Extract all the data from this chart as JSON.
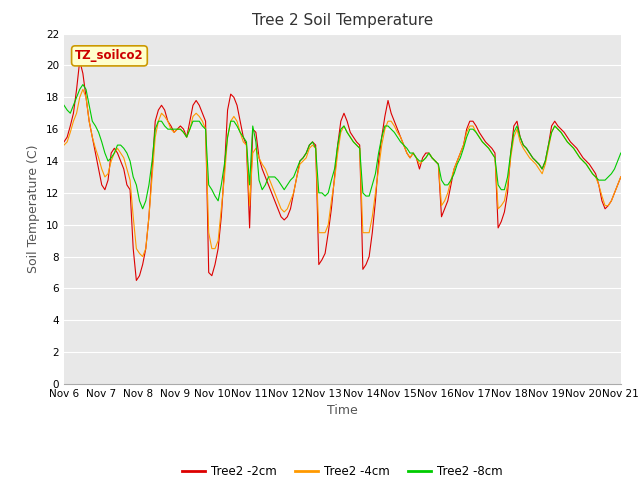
{
  "title": "Tree 2 Soil Temperature",
  "xlabel": "Time",
  "ylabel": "Soil Temperature (C)",
  "ylim": [
    0,
    22
  ],
  "yticks": [
    0,
    2,
    4,
    6,
    8,
    10,
    12,
    14,
    16,
    18,
    20,
    22
  ],
  "xtick_labels": [
    "Nov 6",
    "Nov 7",
    "Nov 8",
    "Nov 9",
    "Nov 10",
    "Nov 11",
    "Nov 12",
    "Nov 13",
    "Nov 14",
    "Nov 15",
    "Nov 16",
    "Nov 17",
    "Nov 18",
    "Nov 19",
    "Nov 20",
    "Nov 21"
  ],
  "annotation_text": "TZ_soilco2",
  "annotation_color": "#cc0000",
  "annotation_bg": "#ffffcc",
  "annotation_border": "#cc9900",
  "legend_labels": [
    "Tree2 -2cm",
    "Tree2 -4cm",
    "Tree2 -8cm"
  ],
  "line_colors": [
    "#dd0000",
    "#ff9900",
    "#00cc00"
  ],
  "fig_bg": "#ffffff",
  "plot_bg": "#e8e8e8",
  "title_fontsize": 11,
  "axis_label_fontsize": 9,
  "tick_fontsize": 7.5,
  "grid_color": "#ffffff",
  "series_2cm": [
    15.2,
    15.5,
    16.2,
    17.0,
    18.5,
    20.3,
    19.5,
    18.0,
    16.5,
    15.5,
    14.5,
    13.5,
    12.5,
    12.2,
    12.8,
    14.5,
    14.8,
    14.5,
    14.0,
    13.5,
    12.5,
    12.2,
    8.5,
    6.5,
    6.8,
    7.5,
    8.5,
    10.5,
    13.5,
    16.5,
    17.2,
    17.5,
    17.2,
    16.5,
    16.2,
    15.8,
    16.0,
    16.2,
    16.0,
    15.5,
    16.5,
    17.5,
    17.8,
    17.5,
    17.0,
    16.5,
    7.0,
    6.8,
    7.5,
    8.5,
    10.5,
    13.5,
    17.2,
    18.2,
    18.0,
    17.5,
    16.5,
    15.5,
    15.0,
    9.8,
    16.0,
    15.8,
    14.2,
    13.5,
    13.0,
    12.5,
    12.0,
    11.5,
    11.0,
    10.5,
    10.3,
    10.5,
    11.0,
    12.0,
    13.0,
    14.0,
    14.2,
    14.5,
    15.0,
    15.2,
    15.0,
    7.5,
    7.8,
    8.2,
    9.5,
    11.0,
    13.0,
    15.0,
    16.5,
    17.0,
    16.5,
    15.8,
    15.5,
    15.2,
    15.0,
    7.2,
    7.5,
    8.0,
    9.5,
    11.5,
    14.0,
    15.5,
    16.8,
    17.8,
    17.0,
    16.5,
    16.0,
    15.5,
    15.0,
    14.5,
    14.2,
    14.5,
    14.2,
    13.5,
    14.2,
    14.5,
    14.5,
    14.2,
    14.0,
    13.8,
    10.5,
    11.0,
    11.5,
    12.5,
    13.5,
    14.0,
    14.5,
    15.0,
    16.0,
    16.5,
    16.5,
    16.2,
    15.8,
    15.5,
    15.2,
    15.0,
    14.8,
    14.5,
    9.8,
    10.2,
    10.8,
    12.0,
    14.5,
    16.2,
    16.5,
    15.5,
    15.0,
    14.8,
    14.5,
    14.2,
    14.0,
    13.8,
    13.5,
    14.0,
    15.0,
    16.2,
    16.5,
    16.2,
    16.0,
    15.8,
    15.5,
    15.2,
    15.0,
    14.8,
    14.5,
    14.2,
    14.0,
    13.8,
    13.5,
    13.2,
    12.5,
    11.5,
    11.0,
    11.2,
    11.5,
    12.0,
    12.5,
    13.0
  ],
  "series_4cm": [
    15.0,
    15.2,
    15.8,
    16.5,
    17.0,
    18.0,
    18.5,
    18.0,
    16.5,
    15.5,
    14.8,
    14.2,
    13.5,
    13.0,
    13.2,
    14.0,
    14.5,
    14.8,
    14.5,
    14.2,
    13.5,
    12.8,
    10.5,
    8.5,
    8.2,
    8.0,
    8.5,
    10.5,
    13.0,
    15.5,
    16.5,
    17.0,
    16.8,
    16.5,
    16.0,
    15.8,
    16.0,
    16.0,
    15.8,
    15.5,
    16.0,
    16.8,
    17.0,
    16.8,
    16.5,
    16.0,
    9.5,
    8.5,
    8.5,
    9.0,
    11.0,
    13.0,
    15.5,
    16.5,
    16.8,
    16.5,
    15.8,
    15.2,
    15.0,
    11.2,
    14.5,
    14.8,
    14.2,
    13.8,
    13.5,
    13.0,
    12.5,
    12.0,
    11.5,
    11.0,
    10.8,
    11.0,
    11.5,
    12.0,
    13.0,
    13.8,
    14.0,
    14.2,
    14.8,
    15.0,
    14.8,
    9.5,
    9.5,
    9.5,
    10.0,
    11.5,
    12.8,
    14.5,
    15.8,
    16.2,
    15.8,
    15.5,
    15.2,
    15.0,
    14.8,
    9.5,
    9.5,
    9.5,
    10.5,
    12.0,
    13.5,
    15.0,
    16.0,
    16.5,
    16.5,
    16.2,
    15.8,
    15.5,
    15.0,
    14.5,
    14.2,
    14.5,
    14.2,
    13.8,
    14.0,
    14.2,
    14.5,
    14.2,
    14.0,
    13.8,
    11.2,
    11.5,
    12.0,
    12.8,
    13.5,
    14.0,
    14.5,
    15.0,
    15.8,
    16.2,
    16.2,
    15.8,
    15.5,
    15.2,
    15.0,
    14.8,
    14.5,
    14.2,
    11.0,
    11.2,
    11.5,
    12.5,
    14.2,
    15.5,
    16.0,
    15.2,
    14.8,
    14.5,
    14.2,
    14.0,
    13.8,
    13.5,
    13.2,
    13.8,
    14.8,
    15.8,
    16.2,
    16.0,
    15.8,
    15.5,
    15.2,
    15.0,
    14.8,
    14.5,
    14.2,
    14.0,
    13.8,
    13.5,
    13.2,
    13.0,
    12.5,
    11.8,
    11.2,
    11.2,
    11.5,
    12.0,
    12.5,
    13.0
  ],
  "series_8cm": [
    17.5,
    17.2,
    17.0,
    17.5,
    18.0,
    18.5,
    18.8,
    18.5,
    17.5,
    16.5,
    16.2,
    15.8,
    15.2,
    14.5,
    14.0,
    14.2,
    14.5,
    15.0,
    15.0,
    14.8,
    14.5,
    14.0,
    13.0,
    12.5,
    11.5,
    11.0,
    11.5,
    12.5,
    14.0,
    16.0,
    16.5,
    16.5,
    16.2,
    16.0,
    16.0,
    16.0,
    16.0,
    16.0,
    15.8,
    15.5,
    16.0,
    16.5,
    16.5,
    16.5,
    16.2,
    16.0,
    12.5,
    12.2,
    11.8,
    11.5,
    12.5,
    13.8,
    15.5,
    16.5,
    16.5,
    16.2,
    15.8,
    15.5,
    15.2,
    12.5,
    16.2,
    15.2,
    12.8,
    12.2,
    12.5,
    13.0,
    13.0,
    13.0,
    12.8,
    12.5,
    12.2,
    12.5,
    12.8,
    13.0,
    13.5,
    14.0,
    14.2,
    14.5,
    15.0,
    15.2,
    14.8,
    12.0,
    12.0,
    11.8,
    12.0,
    12.8,
    13.5,
    15.0,
    16.0,
    16.2,
    15.8,
    15.5,
    15.2,
    15.0,
    14.8,
    12.0,
    11.8,
    11.8,
    12.5,
    13.2,
    14.5,
    15.5,
    16.2,
    16.2,
    16.0,
    15.8,
    15.5,
    15.2,
    15.0,
    14.8,
    14.5,
    14.5,
    14.2,
    14.0,
    14.0,
    14.2,
    14.5,
    14.2,
    14.0,
    13.8,
    12.8,
    12.5,
    12.5,
    12.8,
    13.2,
    13.8,
    14.2,
    14.8,
    15.5,
    16.0,
    16.0,
    15.8,
    15.5,
    15.2,
    15.0,
    14.8,
    14.5,
    14.2,
    12.5,
    12.2,
    12.2,
    13.0,
    14.5,
    15.8,
    16.2,
    15.5,
    15.0,
    14.8,
    14.5,
    14.2,
    14.0,
    13.8,
    13.5,
    14.0,
    15.0,
    15.8,
    16.2,
    16.0,
    15.8,
    15.5,
    15.2,
    15.0,
    14.8,
    14.5,
    14.2,
    14.0,
    13.8,
    13.5,
    13.2,
    13.0,
    12.8,
    12.8,
    12.8,
    13.0,
    13.2,
    13.5,
    14.0,
    14.5
  ]
}
